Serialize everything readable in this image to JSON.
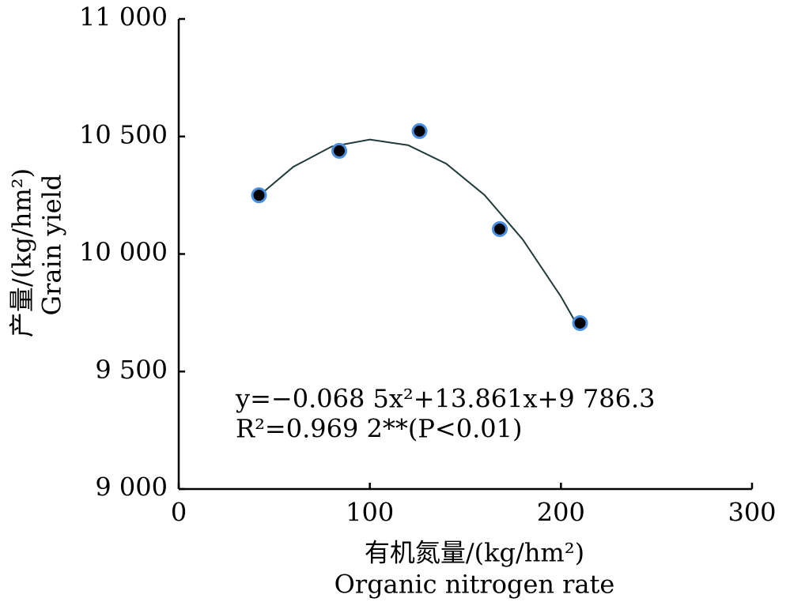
{
  "chart_data": {
    "type": "scatter",
    "x_label": [
      "有机氮量/(kg/hm²)",
      "Organic nitrogen rate"
    ],
    "y_label": [
      "产量/(kg/hm²)",
      "Grain yield"
    ],
    "annotations": [
      "y=−0.068 5x²+13.861x+9 786.3",
      "R²=0.969 2**(P<0.01)"
    ],
    "points": {
      "x": [
        42,
        84,
        126,
        168,
        210
      ],
      "values": [
        10250,
        10439,
        10523,
        10106,
        9706
      ],
      "color": "#000000",
      "edge_color": "#4a90e2"
    },
    "curve": {
      "x": [
        42,
        60,
        80,
        100,
        120,
        140,
        160,
        180,
        200,
        210
      ],
      "values": [
        10248,
        10371,
        10457,
        10487,
        10463,
        10384,
        10251,
        10062,
        9819,
        9676
      ],
      "color": "#1f3a3a"
    },
    "xlim": [
      0,
      300
    ],
    "xticks": [
      0,
      100,
      200,
      300
    ],
    "ylim": [
      9000,
      11000
    ],
    "yticks": [
      {
        "value": 9000,
        "label": "9 000"
      },
      {
        "value": 9500,
        "label": "9 500"
      },
      {
        "value": 10000,
        "label": "10 000"
      },
      {
        "value": 10500,
        "label": "10 500"
      },
      {
        "value": 11000,
        "label": "11 000"
      }
    ]
  }
}
